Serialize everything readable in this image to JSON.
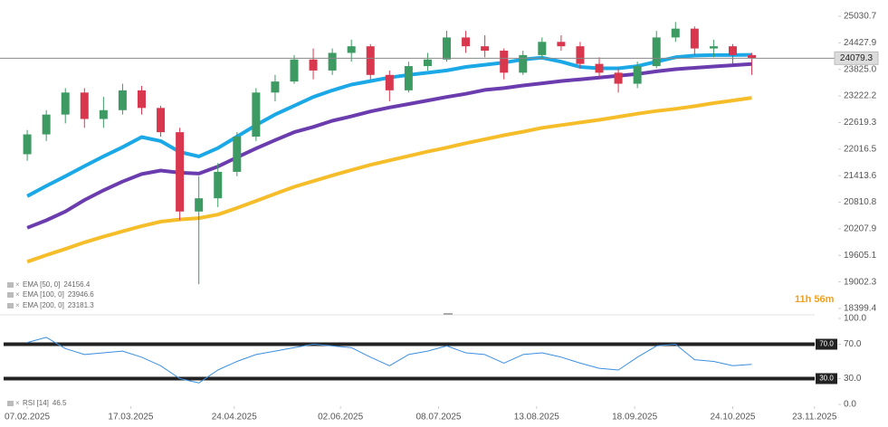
{
  "chart_data": {
    "type": "candlestick",
    "x": [
      "07.02.2025",
      "14.02.2025",
      "21.02.2025",
      "28.02.2025",
      "07.03.2025",
      "14.03.2025",
      "21.03.2025",
      "28.03.2025",
      "04.04.2025",
      "11.04.2025",
      "18.04.2025",
      "25.04.2025",
      "02.05.2025",
      "09.05.2025",
      "16.05.2025",
      "23.05.2025",
      "30.05.2025",
      "06.06.2025",
      "13.06.2025",
      "20.06.2025",
      "27.06.2025",
      "04.07.2025",
      "11.07.2025",
      "18.07.2025",
      "25.07.2025",
      "01.08.2025",
      "08.08.2025",
      "15.08.2025",
      "22.08.2025",
      "29.08.2025",
      "05.09.2025",
      "12.09.2025",
      "19.09.2025",
      "26.09.2025",
      "03.10.2025",
      "10.10.2025",
      "17.10.2025",
      "24.10.2025",
      "31.10.2025"
    ],
    "open": [
      21900,
      22350,
      22800,
      23300,
      22700,
      22900,
      23350,
      22950,
      22400,
      20600,
      20900,
      21500,
      22300,
      23300,
      23550,
      24050,
      23800,
      24200,
      24350,
      23700,
      23350,
      23900,
      24050,
      24550,
      24350,
      24250,
      23750,
      24150,
      24450,
      24350,
      23950,
      23750,
      23500,
      23900,
      24550,
      24750,
      24300,
      24350,
      24150
    ],
    "high": [
      22450,
      22900,
      23400,
      23400,
      23200,
      23500,
      23450,
      23000,
      22500,
      21400,
      21700,
      22400,
      23400,
      23700,
      24150,
      24300,
      24300,
      24500,
      24400,
      23800,
      24000,
      24200,
      24700,
      24700,
      24600,
      24300,
      24250,
      24550,
      24600,
      24450,
      24100,
      23850,
      24000,
      24700,
      24900,
      24800,
      24500,
      24400,
      24200
    ],
    "low": [
      21750,
      22200,
      22600,
      22500,
      22500,
      22800,
      22800,
      22300,
      20400,
      18950,
      20700,
      21400,
      22200,
      23100,
      23500,
      23600,
      23700,
      24000,
      23600,
      23100,
      23300,
      23800,
      24000,
      24200,
      24100,
      23600,
      23700,
      24050,
      24250,
      23850,
      23650,
      23300,
      23400,
      23850,
      24450,
      24150,
      24100,
      23950,
      23700
    ],
    "close": [
      22350,
      22800,
      23300,
      22700,
      22900,
      23350,
      22950,
      22400,
      20600,
      20900,
      21500,
      22300,
      23300,
      23550,
      24050,
      23800,
      24200,
      24350,
      23700,
      23350,
      23900,
      24050,
      24550,
      24350,
      24250,
      23750,
      24150,
      24450,
      24350,
      23950,
      23750,
      23500,
      23900,
      24550,
      24750,
      24300,
      24350,
      24150,
      24079.3
    ],
    "up_color": "#3d9a62",
    "down_color": "#d9374e",
    "series": [
      {
        "name": "EMA [50, 0]",
        "color": "#1aa8e6",
        "values": [
          20950,
          21180,
          21400,
          21630,
          21850,
          22060,
          22290,
          22200,
          21950,
          21850,
          22040,
          22300,
          22560,
          22800,
          23000,
          23200,
          23350,
          23480,
          23560,
          23640,
          23700,
          23750,
          23800,
          23880,
          23930,
          23980,
          24050,
          24090,
          24000,
          23880,
          23850,
          23850,
          23900,
          24000,
          24100,
          24140,
          24150,
          24150,
          24156.4
        ]
      },
      {
        "name": "EMA [100, 0]",
        "color": "#6b3cae",
        "values": [
          20230,
          20400,
          20600,
          20860,
          21080,
          21280,
          21450,
          21530,
          21480,
          21460,
          21620,
          21830,
          22030,
          22220,
          22400,
          22520,
          22660,
          22760,
          22870,
          22960,
          23040,
          23120,
          23200,
          23270,
          23360,
          23400,
          23460,
          23510,
          23560,
          23600,
          23640,
          23680,
          23720,
          23780,
          23830,
          23860,
          23890,
          23920,
          23946.6
        ]
      },
      {
        "name": "EMA [200, 0]",
        "color": "#f6bd2b",
        "values": [
          19460,
          19610,
          19750,
          19900,
          20030,
          20150,
          20270,
          20370,
          20420,
          20450,
          20530,
          20680,
          20840,
          21000,
          21160,
          21290,
          21420,
          21540,
          21660,
          21760,
          21860,
          21960,
          22050,
          22150,
          22240,
          22330,
          22410,
          22500,
          22560,
          22620,
          22680,
          22750,
          22820,
          22880,
          22930,
          22990,
          23060,
          23120,
          23181.3
        ]
      },
      {
        "name": "RSI [14]",
        "color": "#3b8fe0",
        "axis": "y2",
        "values": [
          72,
          78,
          65,
          58,
          60,
          62,
          55,
          45,
          30,
          25,
          40,
          50,
          58,
          62,
          66,
          70,
          68,
          66,
          55,
          45,
          58,
          62,
          68,
          60,
          58,
          48,
          58,
          60,
          55,
          48,
          42,
          40,
          55,
          68,
          70,
          52,
          50,
          45,
          46.5
        ]
      }
    ],
    "xlim": [
      "28.01.2025",
      "20.12.2025"
    ],
    "xticks": [
      "07.02.2025",
      "17.03.2025",
      "24.04.2025",
      "02.06.2025",
      "08.07.2025",
      "13.08.2025",
      "18.09.2025",
      "24.10.2025",
      "23.11.2025"
    ],
    "ylim": [
      18317,
      25400
    ],
    "yticks": [
      25030.7,
      24427.9,
      {
        "value": 23825,
        "label": "23825.0"
      },
      23222.2,
      22619.3,
      22016.5,
      21413.6,
      20810.8,
      20207.9,
      19605.1,
      19002.3,
      18399.4
    ],
    "y2lim": [
      0,
      100
    ],
    "y2ticks": [
      {
        "value": 100,
        "label": "100.0"
      },
      {
        "value": 70,
        "label": "70.0"
      },
      {
        "value": 30,
        "label": "30.0"
      },
      {
        "value": 0,
        "label": "0.0"
      }
    ],
    "y2_levels": [
      {
        "value": 70,
        "label": "70.0"
      },
      {
        "value": 30,
        "label": "30.0"
      }
    ],
    "countdown": "11h 56m",
    "grid": false
  }
}
